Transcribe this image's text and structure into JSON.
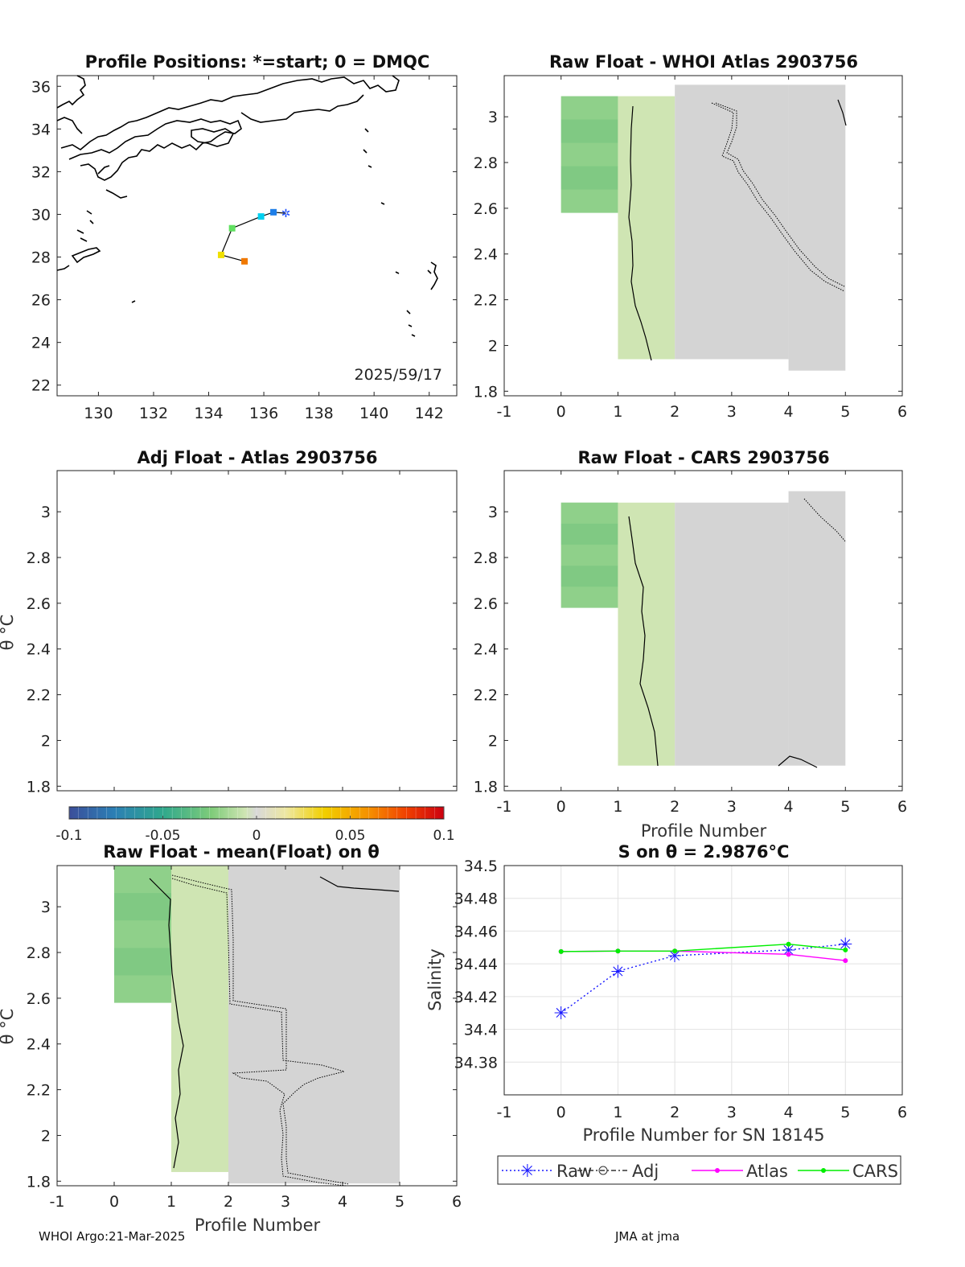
{
  "colors": {
    "green_dark": "#77c47f",
    "green": "#8fd08a",
    "green_light": "#cfe5b3",
    "green_pale": "#d4e4bf",
    "gray": "#d4d4d4",
    "gray_light": "#d9d9d6",
    "raw_series": "#1a1aff",
    "atlas_series": "#ff00ff",
    "cars_series": "#00ee00"
  },
  "footer": {
    "left": "WHOI Argo:21-Mar-2025",
    "right": "JMA at jma"
  },
  "map": {
    "title": "Profile Positions: *=start; 0 = DMQC",
    "date_label": "2025/59/17",
    "xlim": [
      128.5,
      143
    ],
    "ylim": [
      21.5,
      36.5
    ],
    "xticks": [
      130,
      132,
      134,
      136,
      138,
      140,
      142
    ],
    "yticks": [
      22,
      24,
      26,
      28,
      30,
      32,
      34,
      36
    ],
    "track": [
      {
        "lon": 136.8,
        "lat": 30.05,
        "color": "#2050ff",
        "start": true
      },
      {
        "lon": 136.35,
        "lat": 30.1,
        "color": "#1e7ee8"
      },
      {
        "lon": 135.9,
        "lat": 29.9,
        "color": "#00d0f0"
      },
      {
        "lon": 134.85,
        "lat": 29.35,
        "color": "#60e060"
      },
      {
        "lon": 134.45,
        "lat": 28.1,
        "color": "#f0e000"
      },
      {
        "lon": 135.3,
        "lat": 27.8,
        "color": "#f07800"
      }
    ]
  },
  "panels": {
    "whoi": {
      "title": "Raw Float - WHOI Atlas  2903756"
    },
    "adj": {
      "title": "Adj Float - Atlas  2903756",
      "ylabel": "θ °C"
    },
    "cars": {
      "title": "Raw Float - CARS  2903756",
      "xlabel": "Profile Number"
    },
    "mean": {
      "title": "Raw Float - mean(Float) on θ",
      "ylabel": "θ °C",
      "xlabel": "Profile Number"
    }
  },
  "colorbar": {
    "range": [
      -0.1,
      0.1
    ],
    "ticks": [
      -0.1,
      -0.05,
      0,
      0.05,
      0.1
    ],
    "tick_labels": [
      "-0.1",
      "-0.05",
      "0",
      "0.05",
      "0.1"
    ]
  },
  "chart_data": [
    {
      "type": "heatmap",
      "title": "Raw Float - WHOI Atlas  2903756",
      "xlim": [
        -1,
        6
      ],
      "ylim": [
        1.78,
        3.18
      ],
      "xticks": [
        -1,
        0,
        1,
        2,
        3,
        4,
        5,
        6
      ],
      "yticks": [
        1.8,
        2,
        2.2,
        2.4,
        2.6,
        2.8,
        3
      ],
      "columns": [
        {
          "x": [
            0,
            1
          ],
          "theta": [
            2.58,
            3.09
          ],
          "value": -0.03
        },
        {
          "x": [
            1,
            2
          ],
          "theta": [
            1.94,
            3.09
          ],
          "value": -0.01
        },
        {
          "x": [
            2,
            4
          ],
          "theta": [
            1.94,
            3.14
          ],
          "value": 0.0
        },
        {
          "x": [
            4,
            5
          ],
          "theta": [
            1.89,
            3.14
          ],
          "value": 0.0
        }
      ]
    },
    {
      "type": "heatmap",
      "title": "Adj Float - Atlas  2903756",
      "xlim": [
        -1,
        6
      ],
      "ylim": [
        1.78,
        3.18
      ],
      "yticks": [
        1.8,
        2,
        2.2,
        2.4,
        2.6,
        2.8,
        3
      ],
      "columns": []
    },
    {
      "type": "heatmap",
      "title": "Raw Float - CARS  2903756",
      "xlabel": "Profile Number",
      "xlim": [
        -1,
        6
      ],
      "ylim": [
        1.78,
        3.18
      ],
      "xticks": [
        -1,
        0,
        1,
        2,
        3,
        4,
        5,
        6
      ],
      "yticks": [
        1.8,
        2,
        2.2,
        2.4,
        2.6,
        2.8,
        3
      ],
      "columns": [
        {
          "x": [
            0,
            1
          ],
          "theta": [
            2.58,
            3.04
          ],
          "value": -0.03
        },
        {
          "x": [
            1,
            2
          ],
          "theta": [
            1.89,
            3.04
          ],
          "value": -0.01
        },
        {
          "x": [
            2,
            4
          ],
          "theta": [
            1.89,
            3.04
          ],
          "value": 0.0
        },
        {
          "x": [
            4,
            5
          ],
          "theta": [
            1.89,
            3.09
          ],
          "value": 0.0
        }
      ]
    },
    {
      "type": "heatmap",
      "title": "Raw Float - mean(Float) on θ",
      "xlabel": "Profile Number",
      "ylabel": "θ °C",
      "xlim": [
        -1,
        6
      ],
      "ylim": [
        1.78,
        3.18
      ],
      "xticks": [
        -1,
        0,
        1,
        2,
        3,
        4,
        5,
        6
      ],
      "yticks": [
        1.8,
        2,
        2.2,
        2.4,
        2.6,
        2.8,
        3
      ],
      "columns": [
        {
          "x": [
            0,
            1
          ],
          "theta": [
            2.58,
            3.18
          ],
          "value": -0.03
        },
        {
          "x": [
            1,
            2
          ],
          "theta": [
            1.84,
            3.18
          ],
          "value": -0.01
        },
        {
          "x": [
            2,
            5
          ],
          "theta": [
            1.79,
            3.18
          ],
          "value": 0.0
        }
      ]
    },
    {
      "type": "line",
      "title": "S on θ = 2.9876°C",
      "xlabel": "Profile Number for SN 18145",
      "ylabel": "Salinity",
      "xlim": [
        -1,
        6
      ],
      "ylim": [
        34.36,
        34.5
      ],
      "xticks": [
        -1,
        0,
        1,
        2,
        3,
        4,
        5,
        6
      ],
      "yticks": [
        34.38,
        34.4,
        34.42,
        34.44,
        34.46,
        34.48,
        34.5
      ],
      "ytick_labels": [
        "34.38",
        "34.4",
        "34.42",
        "34.44",
        "34.46",
        "34.48",
        "34.5"
      ],
      "grid": true,
      "legend": "bottom",
      "series": [
        {
          "name": "Raw",
          "x": [
            0,
            1,
            2,
            4,
            5
          ],
          "values": [
            34.41,
            34.4355,
            34.445,
            34.4485,
            34.452
          ]
        },
        {
          "name": "Adj",
          "x": [],
          "values": []
        },
        {
          "name": "Atlas",
          "x": [
            0,
            1,
            2,
            4,
            5
          ],
          "values": [
            34.4475,
            34.4478,
            34.4478,
            34.4458,
            34.442
          ]
        },
        {
          "name": "CARS",
          "x": [
            0,
            1,
            2,
            4,
            5
          ],
          "values": [
            34.4475,
            34.4478,
            34.4478,
            34.452,
            34.4485
          ]
        }
      ]
    }
  ]
}
